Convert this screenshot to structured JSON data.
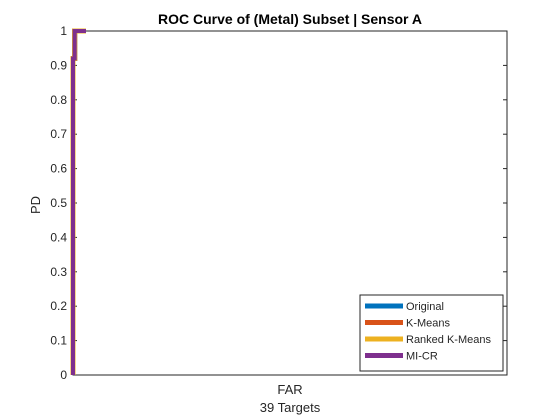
{
  "chart_data": {
    "type": "line",
    "title": "ROC Curve of (Metal) Subset | Sensor A",
    "xlabel": "FAR",
    "xlabel_sub": "39 Targets",
    "ylabel": "PD",
    "ylim": [
      0,
      1
    ],
    "xlim": [
      0,
      1
    ],
    "yticks": [
      "0",
      "0.1",
      "0.2",
      "0.3",
      "0.4",
      "0.5",
      "0.6",
      "0.7",
      "0.8",
      "0.9",
      "1"
    ],
    "grid": false,
    "legend_position": "bottom-right",
    "series": [
      {
        "name": "Original",
        "color": "#0072BD",
        "x": [
          0,
          0,
          0.004,
          0.004,
          0.03
        ],
        "y": [
          0,
          0.92,
          0.92,
          1,
          1
        ]
      },
      {
        "name": "K-Means",
        "color": "#D95319",
        "x": [
          0,
          0,
          0.004,
          0.004,
          0.03
        ],
        "y": [
          0,
          0.92,
          0.92,
          1,
          1
        ]
      },
      {
        "name": "Ranked K-Means",
        "color": "#EDB120",
        "x": [
          0,
          0,
          0.004,
          0.004,
          0.03
        ],
        "y": [
          0,
          0.92,
          0.92,
          1,
          1
        ]
      },
      {
        "name": "MI-CR",
        "color": "#7E2F8E",
        "x": [
          0,
          0,
          0.004,
          0.004,
          0.03
        ],
        "y": [
          0,
          0.92,
          0.92,
          1,
          1
        ]
      }
    ]
  }
}
